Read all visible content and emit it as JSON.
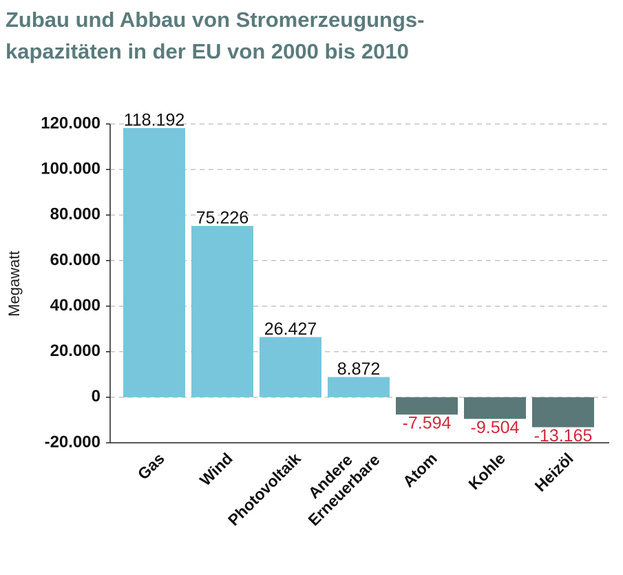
{
  "chart_data": {
    "type": "bar",
    "title": "Zubau und Abbau von Stromerzeugungs-\nkapazitäten in der EU von 2000 bis 2010",
    "ylabel": "Megawatt",
    "categories": [
      "Gas",
      "Wind",
      "Photovoltaik",
      "Andere\nErneuerbare",
      "Atom",
      "Kohle",
      "Heizöl"
    ],
    "values": [
      118192,
      75226,
      26427,
      8872,
      -7594,
      -9504,
      -13165
    ],
    "value_labels": [
      "118.192",
      "75.226",
      "26.427",
      "8.872",
      "-7.594",
      "-9.504",
      "-13.165"
    ],
    "colors": [
      "#78c6dc",
      "#78c6dc",
      "#78c6dc",
      "#78c6dc",
      "#5a7877",
      "#5a7877",
      "#5a7877"
    ],
    "negative_label_color": "#d12a3c",
    "ylim": [
      -20000,
      120000
    ],
    "yticks": [
      {
        "value": -20000,
        "label": "-20.000"
      },
      0,
      {
        "value": 20000,
        "label": "20.000"
      },
      {
        "value": 40000,
        "label": "40.000"
      },
      {
        "value": 60000,
        "label": "60.000"
      },
      {
        "value": 80000,
        "label": "80.000"
      },
      {
        "value": 100000,
        "label": "100.000"
      },
      {
        "value": 120000,
        "label": "120.000"
      }
    ],
    "grid": true
  }
}
